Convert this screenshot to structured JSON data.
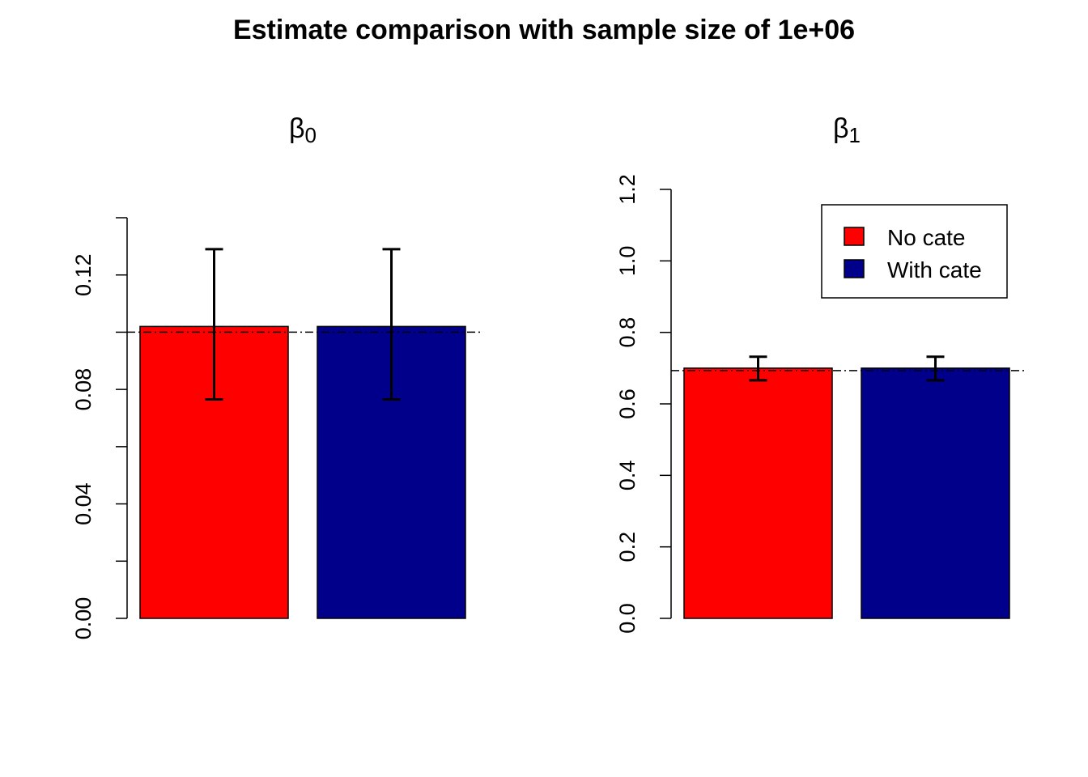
{
  "figure": {
    "title": "Estimate comparison with sample size of 1e+06"
  },
  "legend": {
    "entries": [
      {
        "label": "No cate",
        "color": "#FF0000"
      },
      {
        "label": "With cate",
        "color": "#00008B"
      }
    ]
  },
  "chart_data": [
    {
      "type": "bar",
      "title_symbol": "β",
      "title_subscript": "0",
      "categories": [
        "No cate",
        "With cate"
      ],
      "values": [
        0.102,
        0.102
      ],
      "ci_lower": [
        0.0765,
        0.0765
      ],
      "ci_upper": [
        0.129,
        0.129
      ],
      "colors": [
        "#FF0000",
        "#00008B"
      ],
      "reference_line": 0.1,
      "ylim": [
        0,
        0.14
      ],
      "yticks": [
        0.0,
        0.04,
        0.08,
        0.12
      ],
      "ytick_labels": [
        "0.00",
        "0.04",
        "0.08",
        "0.12"
      ],
      "minor_ticks": [
        0.02,
        0.06,
        0.1,
        0.14
      ],
      "xlabel": "",
      "ylabel": "",
      "legend": false
    },
    {
      "type": "bar",
      "title_symbol": "β",
      "title_subscript": "1",
      "categories": [
        "No cate",
        "With cate"
      ],
      "values": [
        0.7,
        0.7
      ],
      "ci_lower": [
        0.666,
        0.666
      ],
      "ci_upper": [
        0.732,
        0.732
      ],
      "colors": [
        "#FF0000",
        "#00008B"
      ],
      "reference_line": 0.693,
      "ylim": [
        0,
        1.2
      ],
      "yticks": [
        0.0,
        0.2,
        0.4,
        0.6,
        0.8,
        1.0,
        1.2
      ],
      "ytick_labels": [
        "0.0",
        "0.2",
        "0.4",
        "0.6",
        "0.8",
        "1.0",
        "1.2"
      ],
      "minor_ticks": [],
      "xlabel": "",
      "ylabel": "",
      "legend": true,
      "legend_position": "top-right"
    }
  ]
}
